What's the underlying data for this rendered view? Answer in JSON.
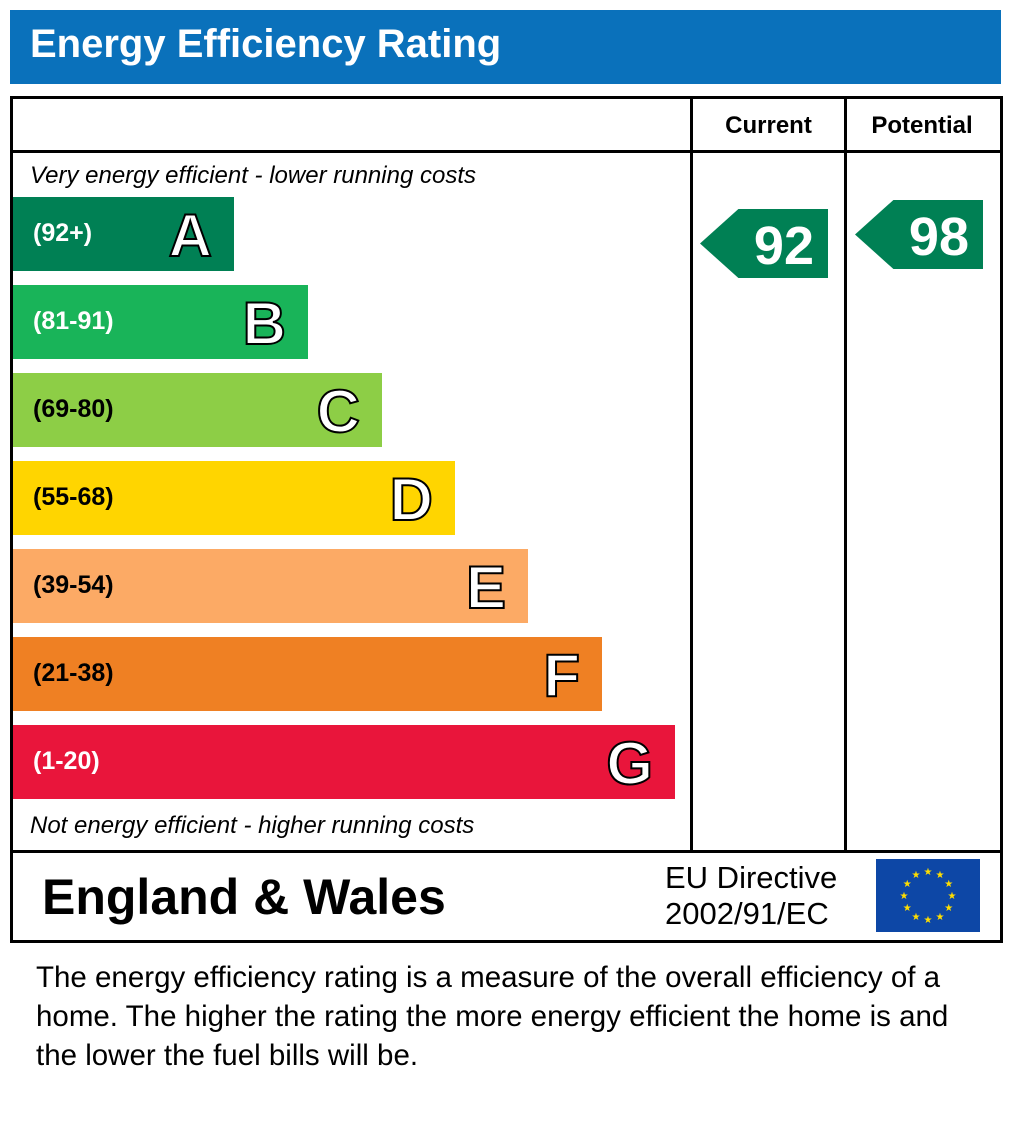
{
  "title": "Energy Efficiency Rating",
  "columns": {
    "current": "Current",
    "potential": "Potential"
  },
  "top_note": "Very energy efficient - lower running costs",
  "bottom_note": "Not energy efficient - higher running costs",
  "region": "England & Wales",
  "directive": [
    "EU Directive",
    "2002/91/EC"
  ],
  "flag_icon": "eu-flag-icon",
  "description": "The energy efficiency rating is a measure of the overall efficiency of a home.  The higher the rating the more energy efficient the home is and the lower the fuel bills will be.",
  "chart_data": {
    "type": "bar",
    "title": "Energy Efficiency Rating",
    "bands": [
      {
        "letter": "A",
        "range": "(92+)",
        "color": "#008054"
      },
      {
        "letter": "B",
        "range": "(81-91)",
        "color": "#19b459"
      },
      {
        "letter": "C",
        "range": "(69-80)",
        "color": "#8dce46"
      },
      {
        "letter": "D",
        "range": "(55-68)",
        "color": "#ffd500"
      },
      {
        "letter": "E",
        "range": "(39-54)",
        "color": "#fcaa65"
      },
      {
        "letter": "F",
        "range": "(21-38)",
        "color": "#ef8023"
      },
      {
        "letter": "G",
        "range": "(1-20)",
        "color": "#e9153b"
      }
    ],
    "current": {
      "value": "92",
      "band": "A",
      "color": "#008054"
    },
    "potential": {
      "value": "98",
      "band": "A",
      "color": "#008054"
    }
  }
}
